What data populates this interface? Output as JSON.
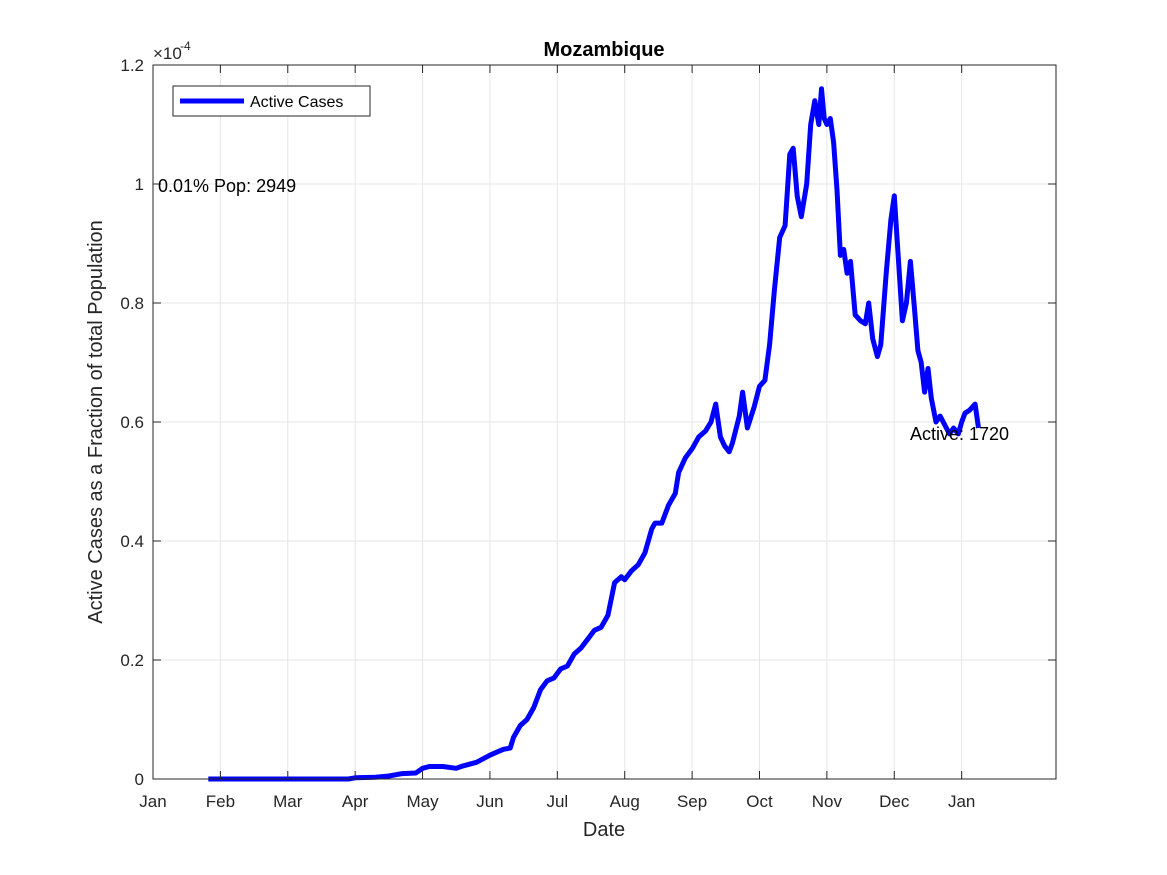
{
  "chart_data": {
    "type": "line",
    "title": "Mozambique",
    "xlabel": "Date",
    "ylabel": "Active Cases as a Fraction of total Population",
    "y_exponent_base": "×10",
    "y_exponent_power": "-4",
    "ylim": [
      0,
      1.2
    ],
    "y_ticks": [
      0,
      0.2,
      0.4,
      0.6,
      0.8,
      1.0,
      1.2
    ],
    "y_tick_labels": [
      "0",
      "0.2",
      "0.4",
      "0.6",
      "0.8",
      "1",
      "1.2"
    ],
    "x_ticks": [
      "Jan",
      "Feb",
      "Mar",
      "Apr",
      "May",
      "Jun",
      "Jul",
      "Aug",
      "Sep",
      "Oct",
      "Nov",
      "Dec",
      "Jan"
    ],
    "x_range_months": [
      0,
      13.4
    ],
    "grid": true,
    "legend_position": "top-left",
    "series": [
      {
        "name": "Active Cases",
        "color": "#0000ff",
        "points": [
          [
            0.82,
            0.0
          ],
          [
            1.0,
            0.0
          ],
          [
            1.5,
            0.0
          ],
          [
            2.0,
            0.0
          ],
          [
            2.5,
            0.0
          ],
          [
            2.9,
            0.0
          ],
          [
            3.0,
            0.002
          ],
          [
            3.3,
            0.003
          ],
          [
            3.5,
            0.005
          ],
          [
            3.7,
            0.009
          ],
          [
            3.9,
            0.01
          ],
          [
            4.0,
            0.018
          ],
          [
            4.1,
            0.021
          ],
          [
            4.3,
            0.021
          ],
          [
            4.5,
            0.018
          ],
          [
            4.6,
            0.022
          ],
          [
            4.8,
            0.028
          ],
          [
            5.0,
            0.04
          ],
          [
            5.1,
            0.045
          ],
          [
            5.2,
            0.05
          ],
          [
            5.3,
            0.052
          ],
          [
            5.35,
            0.07
          ],
          [
            5.45,
            0.09
          ],
          [
            5.55,
            0.1
          ],
          [
            5.65,
            0.12
          ],
          [
            5.75,
            0.15
          ],
          [
            5.85,
            0.165
          ],
          [
            5.95,
            0.17
          ],
          [
            6.05,
            0.185
          ],
          [
            6.15,
            0.19
          ],
          [
            6.25,
            0.21
          ],
          [
            6.35,
            0.22
          ],
          [
            6.45,
            0.235
          ],
          [
            6.55,
            0.25
          ],
          [
            6.65,
            0.255
          ],
          [
            6.75,
            0.275
          ],
          [
            6.85,
            0.33
          ],
          [
            6.95,
            0.34
          ],
          [
            7.0,
            0.335
          ],
          [
            7.1,
            0.35
          ],
          [
            7.2,
            0.36
          ],
          [
            7.3,
            0.38
          ],
          [
            7.4,
            0.42
          ],
          [
            7.45,
            0.43
          ],
          [
            7.55,
            0.43
          ],
          [
            7.65,
            0.46
          ],
          [
            7.75,
            0.48
          ],
          [
            7.8,
            0.515
          ],
          [
            7.9,
            0.54
          ],
          [
            8.0,
            0.555
          ],
          [
            8.1,
            0.575
          ],
          [
            8.2,
            0.585
          ],
          [
            8.28,
            0.6
          ],
          [
            8.35,
            0.63
          ],
          [
            8.42,
            0.575
          ],
          [
            8.48,
            0.56
          ],
          [
            8.55,
            0.55
          ],
          [
            8.6,
            0.565
          ],
          [
            8.7,
            0.61
          ],
          [
            8.75,
            0.65
          ],
          [
            8.82,
            0.59
          ],
          [
            8.92,
            0.625
          ],
          [
            9.0,
            0.66
          ],
          [
            9.08,
            0.67
          ],
          [
            9.15,
            0.73
          ],
          [
            9.22,
            0.82
          ],
          [
            9.3,
            0.91
          ],
          [
            9.38,
            0.93
          ],
          [
            9.45,
            1.05
          ],
          [
            9.5,
            1.06
          ],
          [
            9.56,
            0.98
          ],
          [
            9.62,
            0.945
          ],
          [
            9.7,
            1.0
          ],
          [
            9.76,
            1.1
          ],
          [
            9.82,
            1.14
          ],
          [
            9.88,
            1.1
          ],
          [
            9.92,
            1.16
          ],
          [
            9.96,
            1.11
          ],
          [
            10.0,
            1.1
          ],
          [
            10.05,
            1.11
          ],
          [
            10.1,
            1.07
          ],
          [
            10.15,
            0.99
          ],
          [
            10.2,
            0.88
          ],
          [
            10.25,
            0.89
          ],
          [
            10.3,
            0.85
          ],
          [
            10.35,
            0.87
          ],
          [
            10.42,
            0.78
          ],
          [
            10.5,
            0.77
          ],
          [
            10.57,
            0.765
          ],
          [
            10.62,
            0.8
          ],
          [
            10.68,
            0.74
          ],
          [
            10.75,
            0.71
          ],
          [
            10.8,
            0.73
          ],
          [
            10.88,
            0.85
          ],
          [
            10.95,
            0.94
          ],
          [
            11.0,
            0.98
          ],
          [
            11.08,
            0.84
          ],
          [
            11.12,
            0.77
          ],
          [
            11.18,
            0.8
          ],
          [
            11.24,
            0.87
          ],
          [
            11.3,
            0.79
          ],
          [
            11.35,
            0.72
          ],
          [
            11.4,
            0.7
          ],
          [
            11.45,
            0.65
          ],
          [
            11.5,
            0.69
          ],
          [
            11.55,
            0.64
          ],
          [
            11.62,
            0.6
          ],
          [
            11.68,
            0.61
          ],
          [
            11.75,
            0.595
          ],
          [
            11.82,
            0.58
          ],
          [
            11.88,
            0.59
          ],
          [
            11.95,
            0.58
          ],
          [
            12.0,
            0.6
          ],
          [
            12.05,
            0.615
          ],
          [
            12.12,
            0.62
          ],
          [
            12.2,
            0.63
          ],
          [
            12.25,
            0.59
          ]
        ]
      }
    ],
    "annotations": {
      "pop_label": "0.01% Pop: 2949",
      "active_label": "Active: 1720"
    }
  }
}
